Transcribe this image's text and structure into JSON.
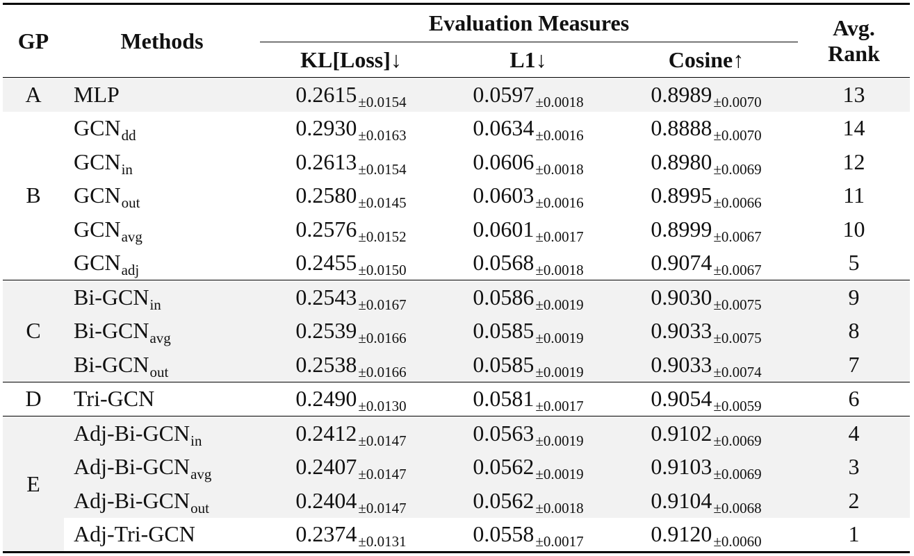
{
  "header": {
    "gp": "GP",
    "methods": "Methods",
    "evaluation_measures": "Evaluation Measures",
    "kl": "KL[Loss]↓",
    "l1": "L1↓",
    "cosine": "Cosine↑",
    "avg_rank_line1": "Avg.",
    "avg_rank_line2": "Rank"
  },
  "groups": [
    "A",
    "B",
    "C",
    "D",
    "E"
  ],
  "rows": [
    {
      "method": "MLP",
      "sub": "",
      "kl": "0.2615",
      "kl_std": "±0.0154",
      "l1": "0.0597",
      "l1_std": "±0.0018",
      "cos": "0.8989",
      "cos_std": "±0.0070",
      "rank": "13"
    },
    {
      "method": "GCN",
      "sub": "dd",
      "kl": "0.2930",
      "kl_std": "±0.0163",
      "l1": "0.0634",
      "l1_std": "±0.0016",
      "cos": "0.8888",
      "cos_std": "±0.0070",
      "rank": "14"
    },
    {
      "method": "GCN",
      "sub": "in",
      "kl": "0.2613",
      "kl_std": "±0.0154",
      "l1": "0.0606",
      "l1_std": "±0.0018",
      "cos": "0.8980",
      "cos_std": "±0.0069",
      "rank": "12"
    },
    {
      "method": "GCN",
      "sub": "out",
      "kl": "0.2580",
      "kl_std": "±0.0145",
      "l1": "0.0603",
      "l1_std": "±0.0016",
      "cos": "0.8995",
      "cos_std": "±0.0066",
      "rank": "11"
    },
    {
      "method": "GCN",
      "sub": "avg",
      "kl": "0.2576",
      "kl_std": "±0.0152",
      "l1": "0.0601",
      "l1_std": "±0.0017",
      "cos": "0.8999",
      "cos_std": "±0.0067",
      "rank": "10"
    },
    {
      "method": "GCN",
      "sub": "adj",
      "kl": "0.2455",
      "kl_std": "±0.0150",
      "l1": "0.0568",
      "l1_std": "±0.0018",
      "cos": "0.9074",
      "cos_std": "±0.0067",
      "rank": "5"
    },
    {
      "method": "Bi-GCN",
      "sub": "in",
      "kl": "0.2543",
      "kl_std": "±0.0167",
      "l1": "0.0586",
      "l1_std": "±0.0019",
      "cos": "0.9030",
      "cos_std": "±0.0075",
      "rank": "9"
    },
    {
      "method": "Bi-GCN",
      "sub": "avg",
      "kl": "0.2539",
      "kl_std": "±0.0166",
      "l1": "0.0585",
      "l1_std": "±0.0019",
      "cos": "0.9033",
      "cos_std": "±0.0075",
      "rank": "8"
    },
    {
      "method": "Bi-GCN",
      "sub": "out",
      "kl": "0.2538",
      "kl_std": "±0.0166",
      "l1": "0.0585",
      "l1_std": "±0.0019",
      "cos": "0.9033",
      "cos_std": "±0.0074",
      "rank": "7"
    },
    {
      "method": "Tri-GCN",
      "sub": "",
      "kl": "0.2490",
      "kl_std": "±0.0130",
      "l1": "0.0581",
      "l1_std": "±0.0017",
      "cos": "0.9054",
      "cos_std": "±0.0059",
      "rank": "6"
    },
    {
      "method": "Adj-Bi-GCN",
      "sub": "in",
      "kl": "0.2412",
      "kl_std": "±0.0147",
      "l1": "0.0563",
      "l1_std": "±0.0019",
      "cos": "0.9102",
      "cos_std": "±0.0069",
      "rank": "4"
    },
    {
      "method": "Adj-Bi-GCN",
      "sub": "avg",
      "kl": "0.2407",
      "kl_std": "±0.0147",
      "l1": "0.0562",
      "l1_std": "±0.0019",
      "cos": "0.9103",
      "cos_std": "±0.0069",
      "rank": "3"
    },
    {
      "method": "Adj-Bi-GCN",
      "sub": "out",
      "kl": "0.2404",
      "kl_std": "±0.0147",
      "l1": "0.0562",
      "l1_std": "±0.0018",
      "cos": "0.9104",
      "cos_std": "±0.0068",
      "rank": "2"
    },
    {
      "method": "Adj-Tri-GCN",
      "sub": "",
      "kl": "0.2374",
      "kl_std": "±0.0131",
      "l1": "0.0558",
      "l1_std": "±0.0017",
      "cos": "0.9120",
      "cos_std": "±0.0060",
      "rank": "1"
    }
  ],
  "colors": {
    "shade": "#f2f2f2",
    "rule": "#000000"
  }
}
